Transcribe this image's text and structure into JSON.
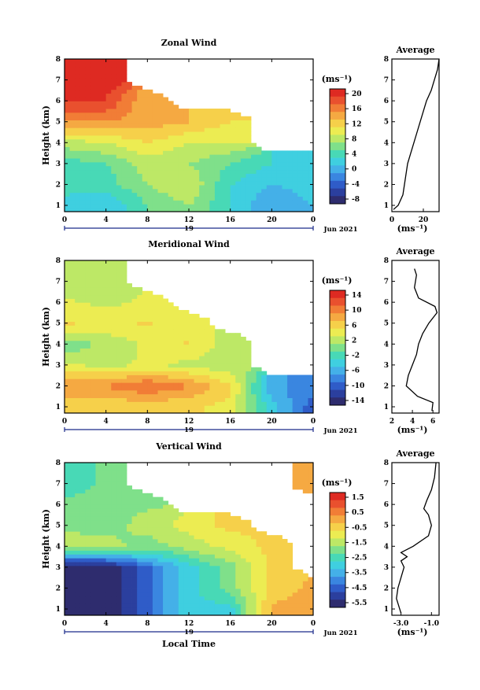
{
  "figure": {
    "x_axis_label": "Local Time",
    "date_label": "Jun 2021",
    "day_label": "19",
    "y_axis_label": "Height (km)",
    "unit_label": "(ms⁻¹)",
    "average_title": "Average"
  },
  "colors": {
    "scale": [
      "#2e2c6e",
      "#2b3f9e",
      "#2f5cc8",
      "#3a86e0",
      "#44b0e8",
      "#3fcfe0",
      "#48d9b6",
      "#7fe08a",
      "#bde866",
      "#ecec52",
      "#f6d04a",
      "#f5a942",
      "#f17d36",
      "#e9502e",
      "#de2a22"
    ]
  },
  "chart_data": [
    {
      "type": "heatmap",
      "title": "Zonal Wind",
      "xlabel": "",
      "ylabel": "Height (km)",
      "x_ticks": [
        "0",
        "4",
        "8",
        "12",
        "16",
        "20",
        "0"
      ],
      "y_ticks": [
        "1",
        "2",
        "3",
        "4",
        "5",
        "6",
        "7",
        "8"
      ],
      "xlim": [
        0,
        24
      ],
      "ylim": [
        0.7,
        8
      ],
      "colorbar": {
        "unit": "(ms⁻¹)",
        "ticks": [
          "20",
          "16",
          "12",
          "8",
          "4",
          "0",
          "-4",
          "-8"
        ],
        "min": -8,
        "max": 22
      },
      "approx_values": {
        "note_bands_km": [
          1,
          2,
          3,
          4,
          5,
          6,
          7
        ],
        "x_hours": [
          0,
          4,
          8,
          12,
          16,
          20,
          24
        ],
        "grid_ms": [
          [
            2,
            2,
            6,
            8,
            4,
            0,
            2
          ],
          [
            6,
            5,
            8,
            10,
            4,
            2,
            3
          ],
          [
            5,
            6,
            9,
            8,
            6,
            4,
            3
          ],
          [
            9,
            10,
            12,
            10,
            10,
            null,
            null
          ],
          [
            16,
            16,
            15,
            14,
            12,
            null,
            null
          ],
          [
            20,
            20,
            14,
            null,
            null,
            null,
            null
          ],
          [
            21,
            21,
            null,
            null,
            null,
            null,
            null
          ]
        ]
      },
      "average_profile": {
        "title": "Average",
        "xlabel": "(ms⁻¹)",
        "x_ticks": [
          "0",
          "20"
        ],
        "xlim": [
          0,
          30
        ],
        "y_ticks": [
          "1",
          "2",
          "3",
          "4",
          "5",
          "6",
          "7",
          "8"
        ],
        "height_km": [
          0.8,
          1.0,
          1.5,
          2.0,
          2.5,
          3.0,
          3.5,
          4.0,
          4.5,
          5.0,
          5.5,
          6.0,
          6.5,
          7.0,
          7.5,
          8.0
        ],
        "value_ms": [
          1,
          4,
          7,
          8,
          9,
          10,
          12,
          14,
          16,
          18,
          20,
          22,
          25,
          27,
          29,
          30
        ]
      }
    },
    {
      "type": "heatmap",
      "title": "Meridional Wind",
      "xlabel": "",
      "ylabel": "Height (km)",
      "x_ticks": [
        "0",
        "4",
        "8",
        "12",
        "16",
        "20",
        "0"
      ],
      "y_ticks": [
        "1",
        "2",
        "3",
        "4",
        "5",
        "6",
        "7",
        "8"
      ],
      "xlim": [
        0,
        24
      ],
      "ylim": [
        0.7,
        8
      ],
      "colorbar": {
        "unit": "(ms⁻¹)",
        "ticks": [
          "14",
          "10",
          "6",
          "2",
          "-2",
          "-6",
          "-10",
          "-14"
        ],
        "min": -15,
        "max": 16
      },
      "approx_values": {
        "note_bands_km": [
          1,
          2,
          3,
          4,
          5,
          6,
          7
        ],
        "x_hours": [
          0,
          4,
          8,
          12,
          16,
          20,
          24
        ],
        "grid_ms": [
          [
            6,
            6,
            6,
            6,
            5,
            -4,
            -10
          ],
          [
            10,
            10,
            12,
            10,
            6,
            -6,
            -8
          ],
          [
            4,
            3,
            4,
            3,
            2,
            null,
            null
          ],
          [
            0,
            2,
            4,
            6,
            2,
            null,
            null
          ],
          [
            6,
            5,
            6,
            4,
            null,
            null,
            null
          ],
          [
            4,
            3,
            4,
            null,
            null,
            null,
            null
          ],
          [
            2,
            2,
            null,
            null,
            null,
            null,
            null
          ]
        ]
      },
      "average_profile": {
        "title": "Average",
        "xlabel": "(ms⁻¹)",
        "x_ticks": [
          "2",
          "4",
          "6"
        ],
        "xlim": [
          2,
          6.6
        ],
        "y_ticks": [
          "1",
          "2",
          "3",
          "4",
          "5",
          "6",
          "7",
          "8"
        ],
        "height_km": [
          0.8,
          1.2,
          1.5,
          2.0,
          2.5,
          3.0,
          3.5,
          4.0,
          4.5,
          5.0,
          5.5,
          5.8,
          6.2,
          6.7,
          7.3,
          7.6
        ],
        "value_ms": [
          5.9,
          6.0,
          4.5,
          3.4,
          3.6,
          4.0,
          4.4,
          4.6,
          5.0,
          5.6,
          6.4,
          6.2,
          4.6,
          4.2,
          4.4,
          4.2
        ]
      }
    },
    {
      "type": "heatmap",
      "title": "Vertical Wind",
      "xlabel": "Local Time",
      "ylabel": "Height (km)",
      "x_ticks": [
        "0",
        "4",
        "8",
        "12",
        "16",
        "20",
        "0"
      ],
      "y_ticks": [
        "1",
        "2",
        "3",
        "4",
        "5",
        "6",
        "7",
        "8"
      ],
      "xlim": [
        0,
        24
      ],
      "ylim": [
        0.7,
        8
      ],
      "colorbar": {
        "unit": "(ms⁻¹)",
        "ticks": [
          "1.5",
          "0.5",
          "-0.5",
          "-1.5",
          "-2.5",
          "-3.5",
          "-4.5",
          "-5.5"
        ],
        "min": -6,
        "max": 2
      },
      "approx_values": {
        "note_bands_km": [
          1,
          2,
          3,
          4,
          5,
          6,
          7
        ],
        "x_hours": [
          0,
          4,
          8,
          12,
          16,
          20,
          24
        ],
        "grid_ms": [
          [
            -6,
            -6,
            -4.5,
            -3,
            -3,
            0,
            0.3
          ],
          [
            -6,
            -6,
            -4.5,
            -3,
            -2,
            -0.5,
            0
          ],
          [
            -6,
            -6,
            -4.5,
            -3,
            -2,
            -0.5,
            null
          ],
          [
            -1.5,
            -1.5,
            -2,
            -1.5,
            -1,
            -0.5,
            null
          ],
          [
            -1.8,
            -2,
            -1.5,
            -1,
            -0.5,
            null,
            null
          ],
          [
            -2.2,
            -2,
            -1.8,
            null,
            null,
            null,
            null
          ],
          [
            -2.5,
            -2.2,
            null,
            null,
            null,
            null,
            0
          ]
        ]
      },
      "average_profile": {
        "title": "Average",
        "xlabel": "(ms⁻¹)",
        "x_ticks": [
          "-3.0",
          "-1.0"
        ],
        "xlim": [
          -3.6,
          -0.5
        ],
        "y_ticks": [
          "1",
          "2",
          "3",
          "4",
          "5",
          "6",
          "7",
          "8"
        ],
        "height_km": [
          0.8,
          1.5,
          2.0,
          2.5,
          3.0,
          3.3,
          3.5,
          3.7,
          4.0,
          4.5,
          5.0,
          5.5,
          5.8,
          6.2,
          6.7,
          7.3,
          8.0
        ],
        "value_ms": [
          -3.0,
          -3.3,
          -3.2,
          -3.0,
          -2.8,
          -3.0,
          -2.6,
          -3.0,
          -2.2,
          -1.2,
          -1.0,
          -1.2,
          -1.5,
          -1.3,
          -1.0,
          -0.8,
          -0.7
        ]
      }
    }
  ]
}
